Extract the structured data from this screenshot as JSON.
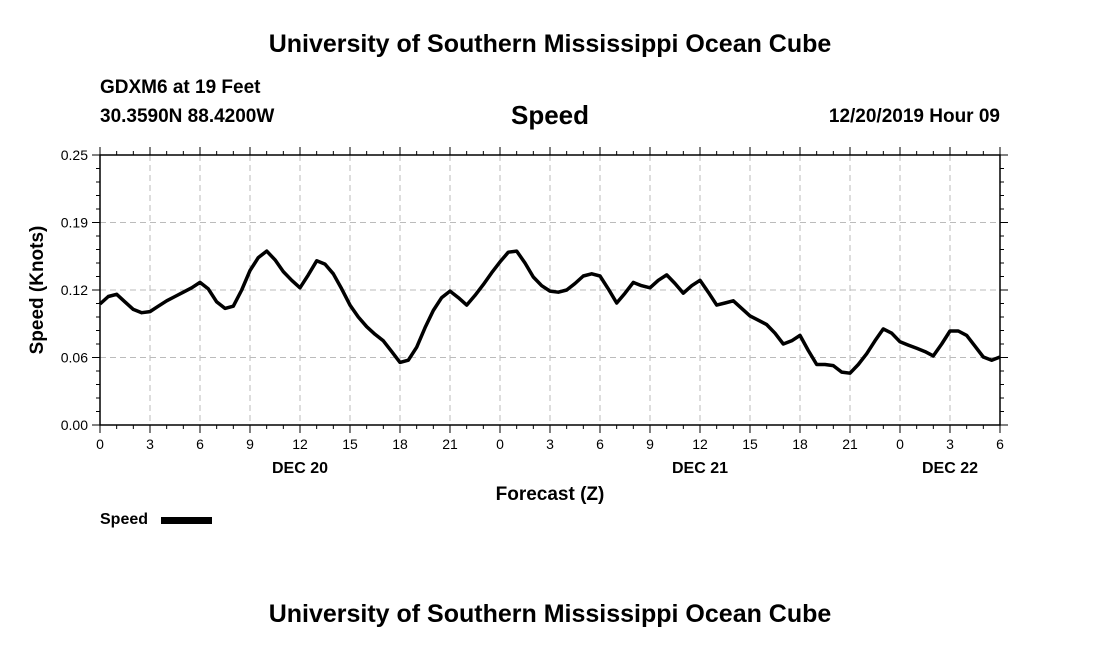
{
  "header": {
    "title": "University of Southern Mississippi Ocean Cube",
    "station": "GDXM6 at 19 Feet",
    "coordinates": "30.3590N 88.4200W",
    "variable": "Speed",
    "timestamp": "12/20/2019 Hour 09"
  },
  "footer": {
    "title": "University of Southern Mississippi Ocean Cube"
  },
  "chart_data": {
    "type": "line",
    "title": "Speed",
    "xlabel": "Forecast (Z)",
    "ylabel": "Speed (Knots)",
    "ylim": [
      0,
      0.25
    ],
    "yticks": [
      "0.00",
      "0.06",
      "0.12",
      "0.19",
      "0.25"
    ],
    "xlim": [
      0,
      54
    ],
    "xticks": [
      "0",
      "3",
      "6",
      "9",
      "12",
      "15",
      "18",
      "21",
      "0",
      "3",
      "6",
      "9",
      "12",
      "15",
      "18",
      "21",
      "0",
      "3",
      "6"
    ],
    "date_labels": [
      {
        "text": "DEC 20",
        "hour": 12
      },
      {
        "text": "DEC 21",
        "hour": 36
      },
      {
        "text": "DEC 22",
        "hour": 51
      }
    ],
    "legend": {
      "label": "Speed",
      "position": "bottom-left"
    },
    "grid": true,
    "series": [
      {
        "name": "Speed",
        "color": "#000000",
        "x": [
          0,
          0.5,
          1,
          1.5,
          2,
          2.5,
          3,
          3.5,
          4,
          4.5,
          5,
          5.5,
          6,
          6.5,
          7,
          7.5,
          8,
          8.5,
          9,
          9.5,
          10,
          10.5,
          11,
          11.5,
          12,
          12.5,
          13,
          13.5,
          14,
          14.5,
          15,
          15.5,
          16,
          16.5,
          17,
          17.5,
          18,
          18.5,
          19,
          19.5,
          20,
          20.5,
          21,
          21.5,
          22,
          22.5,
          23,
          23.5,
          24,
          24.5,
          25,
          25.5,
          26,
          26.5,
          27,
          27.5,
          28,
          28.5,
          29,
          29.5,
          30,
          30.5,
          31,
          31.5,
          32,
          32.5,
          33,
          33.5,
          34,
          34.5,
          35,
          35.5,
          36,
          36.5,
          37,
          37.5,
          38,
          38.5,
          39,
          39.5,
          40,
          40.5,
          41,
          41.5,
          42,
          42.5,
          43,
          43.5,
          44,
          44.5,
          45,
          45.5,
          46,
          46.5,
          47,
          47.5,
          48,
          48.5,
          49,
          49.5,
          50,
          50.5,
          51,
          51.5,
          52,
          52.5,
          53,
          53.5,
          54
        ],
        "values": [
          0.112,
          0.119,
          0.121,
          0.114,
          0.107,
          0.104,
          0.105,
          0.11,
          0.115,
          0.119,
          0.123,
          0.127,
          0.132,
          0.126,
          0.114,
          0.108,
          0.11,
          0.125,
          0.143,
          0.155,
          0.161,
          0.153,
          0.142,
          0.134,
          0.127,
          0.139,
          0.152,
          0.149,
          0.14,
          0.126,
          0.111,
          0.1,
          0.091,
          0.084,
          0.078,
          0.068,
          0.058,
          0.06,
          0.072,
          0.09,
          0.106,
          0.118,
          0.124,
          0.118,
          0.111,
          0.12,
          0.13,
          0.141,
          0.151,
          0.16,
          0.161,
          0.15,
          0.137,
          0.129,
          0.124,
          0.123,
          0.125,
          0.131,
          0.138,
          0.14,
          0.138,
          0.126,
          0.113,
          0.122,
          0.132,
          0.129,
          0.127,
          0.134,
          0.139,
          0.131,
          0.122,
          0.129,
          0.134,
          0.123,
          0.111,
          0.113,
          0.115,
          0.108,
          0.101,
          0.097,
          0.093,
          0.085,
          0.075,
          0.078,
          0.083,
          0.069,
          0.056,
          0.056,
          0.055,
          0.049,
          0.048,
          0.056,
          0.066,
          0.078,
          0.089,
          0.085,
          0.077,
          0.074,
          0.071,
          0.068,
          0.064,
          0.075,
          0.087,
          0.087,
          0.083,
          0.073,
          0.063,
          0.06,
          0.063
        ]
      }
    ]
  }
}
